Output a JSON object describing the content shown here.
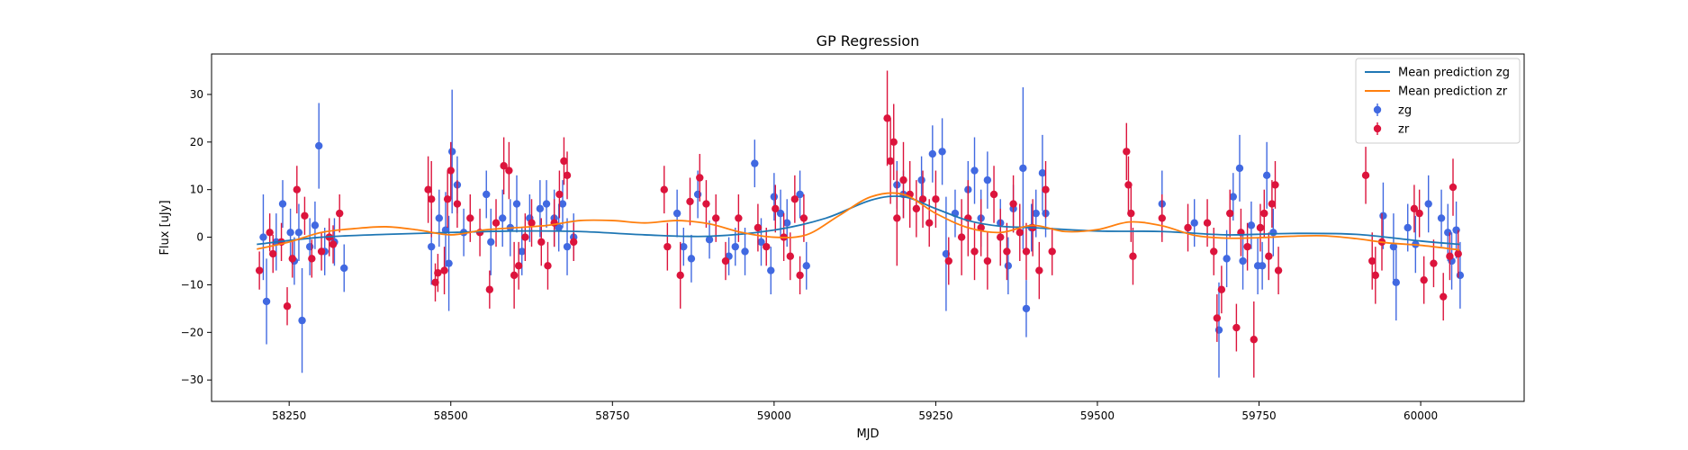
{
  "chart_data": {
    "type": "scatter",
    "title": "GP Regression",
    "xlabel": "MJD",
    "ylabel": "Flux [uJy]",
    "xlim": [
      58130,
      60160
    ],
    "ylim": [
      -34.5,
      38.5
    ],
    "xticks": [
      58250,
      58500,
      58750,
      59000,
      59250,
      59500,
      59750,
      60000
    ],
    "yticks": [
      -30,
      -20,
      -10,
      0,
      10,
      20,
      30
    ],
    "grid": false,
    "legend_position": "top-right",
    "lines": [
      {
        "name": "Mean prediction zg",
        "color": "#1f77b4",
        "x": [
          58200,
          58300,
          58400,
          58500,
          58600,
          58700,
          58800,
          58900,
          59000,
          59080,
          59150,
          59200,
          59250,
          59300,
          59350,
          59400,
          59500,
          59600,
          59700,
          59800,
          59900,
          60000,
          60060
        ],
        "y": [
          -1.5,
          0.0,
          0.6,
          1.0,
          1.3,
          1.2,
          0.5,
          0.2,
          1.5,
          4.0,
          7.8,
          8.5,
          6.0,
          3.5,
          2.3,
          2.0,
          1.3,
          1.2,
          0.5,
          0.8,
          0.6,
          -0.8,
          -1.5
        ]
      },
      {
        "name": "Mean prediction zr",
        "color": "#ff7f0e",
        "x": [
          58200,
          58250,
          58300,
          58350,
          58400,
          58450,
          58500,
          58550,
          58600,
          58650,
          58700,
          58750,
          58800,
          58850,
          58900,
          58950,
          59000,
          59050,
          59100,
          59150,
          59200,
          59250,
          59300,
          59350,
          59400,
          59450,
          59500,
          59550,
          59600,
          59650,
          59700,
          59750,
          59800,
          59850,
          59900,
          59950,
          60000,
          60050,
          60060
        ],
        "y": [
          -2.5,
          -1.0,
          1.0,
          1.8,
          2.2,
          1.5,
          0.5,
          1.5,
          2.0,
          2.5,
          3.5,
          3.5,
          3.0,
          3.5,
          2.8,
          1.0,
          0.0,
          0.5,
          4.5,
          8.5,
          9.0,
          5.0,
          2.0,
          1.0,
          2.5,
          1.2,
          1.6,
          3.2,
          2.4,
          0.4,
          -0.2,
          -0.1,
          0.2,
          0.3,
          -0.3,
          -1.2,
          -1.7,
          -2.5,
          -2.7
        ]
      }
    ],
    "series": [
      {
        "name": "zg",
        "color": "#4169e1",
        "points": [
          [
            58210,
            0,
            9
          ],
          [
            58215,
            -13.5,
            9
          ],
          [
            58230,
            -1,
            6
          ],
          [
            58240,
            7,
            5
          ],
          [
            58252,
            1,
            5
          ],
          [
            58258,
            -5,
            5
          ],
          [
            58265,
            1,
            6
          ],
          [
            58270,
            -17.5,
            11
          ],
          [
            58282,
            -2,
            6
          ],
          [
            58290,
            2.5,
            5
          ],
          [
            58296,
            19.2,
            9
          ],
          [
            58305,
            -3,
            5
          ],
          [
            58320,
            -1,
            5
          ],
          [
            58335,
            -6.5,
            5
          ],
          [
            58470,
            -2,
            8
          ],
          [
            58482,
            4,
            6
          ],
          [
            58492,
            1.5,
            8
          ],
          [
            58497,
            -5.5,
            10
          ],
          [
            58502,
            18,
            13
          ],
          [
            58510,
            11,
            6
          ],
          [
            58520,
            1,
            5
          ],
          [
            58555,
            9,
            5
          ],
          [
            58562,
            -1,
            7
          ],
          [
            58580,
            4,
            6
          ],
          [
            58592,
            2,
            6
          ],
          [
            58602,
            7,
            6
          ],
          [
            58610,
            -3,
            5
          ],
          [
            58622,
            4,
            5
          ],
          [
            58638,
            6,
            6
          ],
          [
            58648,
            7,
            5
          ],
          [
            58660,
            4,
            6
          ],
          [
            58667,
            2,
            5
          ],
          [
            58673,
            7,
            5
          ],
          [
            58680,
            -2,
            6
          ],
          [
            58690,
            0,
            5
          ],
          [
            58850,
            5,
            5
          ],
          [
            58860,
            -2,
            4
          ],
          [
            58872,
            -4.5,
            5
          ],
          [
            58882,
            9,
            5
          ],
          [
            58900,
            -0.5,
            4
          ],
          [
            58930,
            -4,
            4
          ],
          [
            58940,
            -2,
            4
          ],
          [
            58955,
            -3,
            5
          ],
          [
            58970,
            15.5,
            5
          ],
          [
            58980,
            -1,
            5
          ],
          [
            58995,
            -7,
            5
          ],
          [
            59000,
            8.5,
            5
          ],
          [
            59010,
            5,
            5
          ],
          [
            59020,
            3,
            5
          ],
          [
            59040,
            9,
            5
          ],
          [
            59050,
            -6,
            5
          ],
          [
            59190,
            11,
            5
          ],
          [
            59200,
            9,
            5
          ],
          [
            59228,
            12,
            5
          ],
          [
            59245,
            17.5,
            6
          ],
          [
            59260,
            18,
            7
          ],
          [
            59266,
            -3.5,
            12
          ],
          [
            59280,
            5,
            5
          ],
          [
            59300,
            10,
            6
          ],
          [
            59310,
            14,
            7
          ],
          [
            59320,
            4,
            6
          ],
          [
            59330,
            12,
            6
          ],
          [
            59350,
            3,
            5
          ],
          [
            59362,
            -6,
            6
          ],
          [
            59370,
            6,
            5
          ],
          [
            59385,
            14.5,
            17
          ],
          [
            59390,
            -15,
            6
          ],
          [
            59398,
            2,
            5
          ],
          [
            59405,
            5,
            5
          ],
          [
            59415,
            13.5,
            8
          ],
          [
            59420,
            5,
            5
          ],
          [
            59600,
            7,
            7
          ],
          [
            59650,
            3,
            5
          ],
          [
            59688,
            -19.5,
            10
          ],
          [
            59700,
            -4.5,
            6
          ],
          [
            59710,
            8.5,
            5
          ],
          [
            59720,
            14.5,
            7
          ],
          [
            59725,
            -5,
            6
          ],
          [
            59738,
            2.5,
            5
          ],
          [
            59748,
            -6,
            6
          ],
          [
            59755,
            -6,
            5
          ],
          [
            59762,
            13,
            7
          ],
          [
            59772,
            1,
            5
          ],
          [
            59942,
            4.5,
            7
          ],
          [
            59958,
            -2,
            7
          ],
          [
            59962,
            -9.5,
            8
          ],
          [
            59980,
            2,
            5
          ],
          [
            59992,
            -1.5,
            6
          ],
          [
            60012,
            7,
            6
          ],
          [
            60032,
            4,
            6
          ],
          [
            60042,
            1,
            6
          ],
          [
            60048,
            -5,
            6
          ],
          [
            60055,
            1.5,
            6
          ],
          [
            60061,
            -8,
            7
          ]
        ]
      },
      {
        "name": "zr",
        "color": "#dc143c",
        "points": [
          [
            58204,
            -7,
            4
          ],
          [
            58220,
            1,
            4
          ],
          [
            58225,
            -3.5,
            4
          ],
          [
            58238,
            -1,
            4
          ],
          [
            58247,
            -14.5,
            4
          ],
          [
            58255,
            -4.5,
            4
          ],
          [
            58262,
            10,
            5
          ],
          [
            58274,
            4.5,
            4
          ],
          [
            58285,
            -4.5,
            4
          ],
          [
            58300,
            -3,
            4
          ],
          [
            58312,
            0,
            4
          ],
          [
            58318,
            -1.5,
            4
          ],
          [
            58328,
            5,
            4
          ],
          [
            58465,
            10,
            7
          ],
          [
            58470,
            8,
            8
          ],
          [
            58476,
            -9.5,
            4
          ],
          [
            58480,
            -7.5,
            4
          ],
          [
            58490,
            -7,
            5
          ],
          [
            58495,
            8,
            6
          ],
          [
            58500,
            14,
            6
          ],
          [
            58510,
            7,
            5
          ],
          [
            58530,
            4,
            5
          ],
          [
            58545,
            1,
            5
          ],
          [
            58560,
            -11,
            4
          ],
          [
            58570,
            3,
            5
          ],
          [
            58582,
            15,
            6
          ],
          [
            58590,
            14,
            6
          ],
          [
            58598,
            -8,
            7
          ],
          [
            58605,
            -6,
            5
          ],
          [
            58615,
            0,
            5
          ],
          [
            58625,
            3,
            5
          ],
          [
            58640,
            -1,
            5
          ],
          [
            58650,
            -6,
            5
          ],
          [
            58660,
            3,
            5
          ],
          [
            58668,
            9,
            5
          ],
          [
            58675,
            16,
            5
          ],
          [
            58680,
            13,
            5
          ],
          [
            58690,
            -1,
            4
          ],
          [
            58830,
            10,
            5
          ],
          [
            58835,
            -2,
            5
          ],
          [
            58855,
            -8,
            7
          ],
          [
            58870,
            7.5,
            5
          ],
          [
            58885,
            12.5,
            5
          ],
          [
            58895,
            7,
            5
          ],
          [
            58910,
            4,
            5
          ],
          [
            58925,
            -5,
            4
          ],
          [
            58945,
            4,
            5
          ],
          [
            58975,
            2,
            5
          ],
          [
            58988,
            -2,
            4
          ],
          [
            59002,
            6,
            5
          ],
          [
            59015,
            0,
            5
          ],
          [
            59025,
            -4,
            5
          ],
          [
            59032,
            8,
            5
          ],
          [
            59040,
            -8,
            4
          ],
          [
            59046,
            4,
            5
          ],
          [
            59175,
            25,
            10
          ],
          [
            59180,
            16,
            9
          ],
          [
            59185,
            20,
            8
          ],
          [
            59190,
            4,
            10
          ],
          [
            59200,
            12,
            8
          ],
          [
            59210,
            9,
            7
          ],
          [
            59220,
            6,
            6
          ],
          [
            59230,
            8,
            6
          ],
          [
            59240,
            3,
            5
          ],
          [
            59250,
            8,
            6
          ],
          [
            59270,
            -5,
            5
          ],
          [
            59290,
            0,
            8
          ],
          [
            59300,
            4,
            8
          ],
          [
            59310,
            -3,
            6
          ],
          [
            59320,
            2,
            6
          ],
          [
            59330,
            -5,
            6
          ],
          [
            59340,
            9,
            6
          ],
          [
            59350,
            0,
            6
          ],
          [
            59360,
            -3,
            6
          ],
          [
            59370,
            7,
            6
          ],
          [
            59380,
            1,
            6
          ],
          [
            59390,
            -3,
            6
          ],
          [
            59400,
            2,
            6
          ],
          [
            59410,
            -7,
            6
          ],
          [
            59420,
            10,
            6
          ],
          [
            59430,
            -3,
            5
          ],
          [
            59545,
            18,
            6
          ],
          [
            59548,
            11,
            6
          ],
          [
            59552,
            5,
            6
          ],
          [
            59555,
            -4,
            6
          ],
          [
            59600,
            4,
            5
          ],
          [
            59640,
            2,
            5
          ],
          [
            59670,
            3,
            5
          ],
          [
            59680,
            -3,
            5
          ],
          [
            59685,
            -17,
            5
          ],
          [
            59692,
            -11,
            5
          ],
          [
            59705,
            5,
            5
          ],
          [
            59715,
            -19,
            5
          ],
          [
            59722,
            1,
            5
          ],
          [
            59732,
            -2,
            5
          ],
          [
            59742,
            -21.5,
            8
          ],
          [
            59752,
            2,
            5
          ],
          [
            59758,
            5,
            5
          ],
          [
            59765,
            -4,
            5
          ],
          [
            59770,
            7,
            5
          ],
          [
            59775,
            11,
            5
          ],
          [
            59780,
            -7,
            5
          ],
          [
            59915,
            13,
            6
          ],
          [
            59925,
            -5,
            6
          ],
          [
            59930,
            -8,
            6
          ],
          [
            59940,
            -1,
            6
          ],
          [
            59990,
            6,
            5
          ],
          [
            59998,
            5,
            5
          ],
          [
            60005,
            -9,
            5
          ],
          [
            60020,
            -5.5,
            5
          ],
          [
            60035,
            -12.5,
            5
          ],
          [
            60045,
            -4,
            5
          ],
          [
            60050,
            10.5,
            6
          ],
          [
            60058,
            -3.5,
            5
          ]
        ]
      }
    ]
  }
}
